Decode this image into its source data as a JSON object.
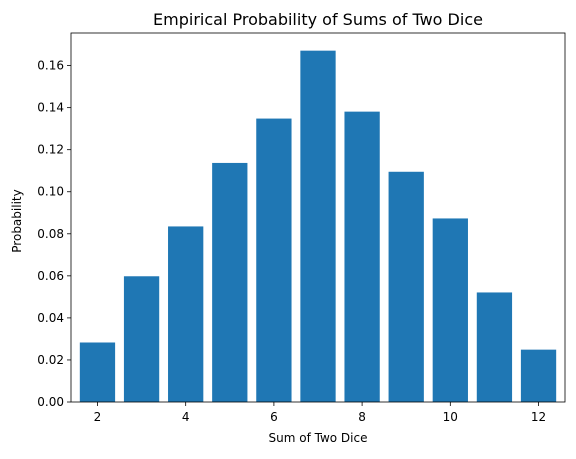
{
  "chart_data": {
    "type": "bar",
    "title": "Empirical Probability of Sums of Two Dice",
    "xlabel": "Sum of Two Dice",
    "ylabel": "Probability",
    "categories": [
      2,
      3,
      4,
      5,
      6,
      7,
      8,
      9,
      10,
      11,
      12
    ],
    "values": [
      0.0283,
      0.0598,
      0.0835,
      0.1137,
      0.1348,
      0.1671,
      0.1381,
      0.1095,
      0.0873,
      0.0521,
      0.0249
    ],
    "xlim": [
      1.4,
      12.6
    ],
    "ylim": [
      0,
      0.1755
    ],
    "xticks": [
      2,
      4,
      6,
      8,
      10,
      12
    ],
    "xtick_labels": [
      "2",
      "4",
      "6",
      "8",
      "10",
      "12"
    ],
    "yticks": [
      0,
      0.02,
      0.04,
      0.06,
      0.08,
      0.1,
      0.12,
      0.14,
      0.16
    ],
    "ytick_labels": [
      "0.00",
      "0.02",
      "0.04",
      "0.06",
      "0.08",
      "0.10",
      "0.12",
      "0.14",
      "0.16"
    ],
    "bar_color": "#1f77b4",
    "grid": false
  }
}
